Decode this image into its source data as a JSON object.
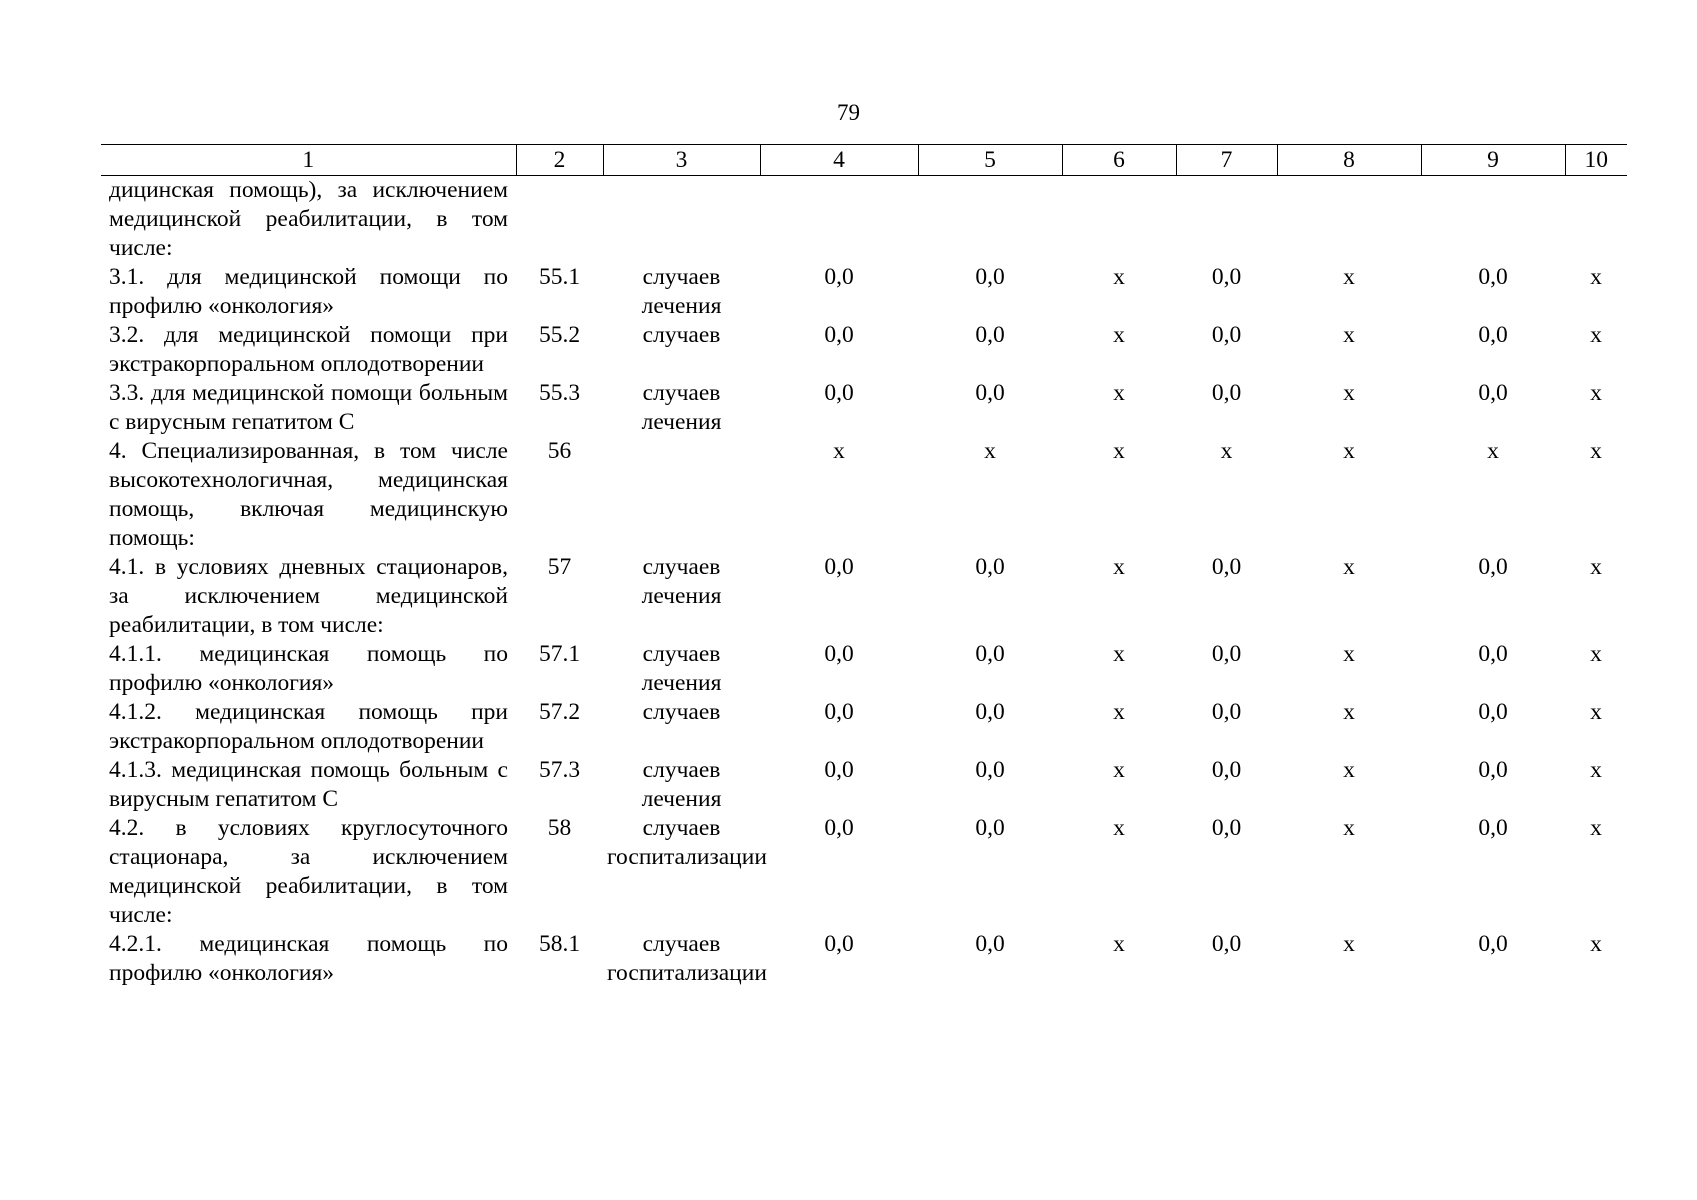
{
  "page_number": "79",
  "table": {
    "headers": [
      "1",
      "2",
      "3",
      "4",
      "5",
      "6",
      "7",
      "8",
      "9",
      "10"
    ],
    "rows": [
      {
        "name": "дицинская помощь), за исключением медицинской реабилитации, в том числе:",
        "code": "",
        "unit": "",
        "values": [
          "",
          "",
          "",
          "",
          "",
          "",
          ""
        ]
      },
      {
        "name": "3.1. для медицинской помощи по профилю «онкология»",
        "code": "55.1",
        "unit": "случаев лечения",
        "values": [
          "0,0",
          "0,0",
          "х",
          "0,0",
          "х",
          "0,0",
          "х"
        ]
      },
      {
        "name": "3.2. для медицинской помощи при экстракорпоральном оплодотворении",
        "code": "55.2",
        "unit": "случаев",
        "values": [
          "0,0",
          "0,0",
          "х",
          "0,0",
          "х",
          "0,0",
          "х"
        ]
      },
      {
        "name": "3.3. для медицинской помощи больным с вирусным гепатитом С",
        "code": "55.3",
        "unit": "случаев лечения",
        "values": [
          "0,0",
          "0,0",
          "х",
          "0,0",
          "х",
          "0,0",
          "х"
        ]
      },
      {
        "name": "4. Специализированная, в том числе высокотехнологичная, медицинская помощь, включая медицинскую помощь:",
        "code": "56",
        "unit": "",
        "values": [
          "х",
          "х",
          "х",
          "х",
          "х",
          "х",
          "х"
        ]
      },
      {
        "name": "4.1. в условиях дневных стационаров, за исключением медицинской реабилитации, в том числе:",
        "code": "57",
        "unit": "случаев лечения",
        "values": [
          "0,0",
          "0,0",
          "х",
          "0,0",
          "х",
          "0,0",
          "х"
        ]
      },
      {
        "name": "4.1.1. медицинская помощь по профилю «онкология»",
        "code": "57.1",
        "unit": "случаев лечения",
        "values": [
          "0,0",
          "0,0",
          "х",
          "0,0",
          "х",
          "0,0",
          "х"
        ]
      },
      {
        "name": "4.1.2. медицинская помощь при экстракорпоральном оплодотворении",
        "code": "57.2",
        "unit": "случаев",
        "values": [
          "0,0",
          "0,0",
          "х",
          "0,0",
          "х",
          "0,0",
          "х"
        ]
      },
      {
        "name": "4.1.3. медицинская помощь больным с вирусным гепатитом С",
        "code": "57.3",
        "unit": "случаев лечения",
        "values": [
          "0,0",
          "0,0",
          "х",
          "0,0",
          "х",
          "0,0",
          "х"
        ]
      },
      {
        "name": "4.2. в условиях круглосуточного стационара, за исключением медицинской реабилитации, в том числе:",
        "code": "58",
        "unit": "случаев госпитализации",
        "values": [
          "0,0",
          "0,0",
          "х",
          "0,0",
          "х",
          "0,0",
          "х"
        ]
      },
      {
        "name": "4.2.1. медицинская помощь по профилю «онкология»",
        "code": "58.1",
        "unit": "случаев госпитализации",
        "values": [
          "0,0",
          "0,0",
          "х",
          "0,0",
          "х",
          "0,0",
          "х"
        ]
      }
    ]
  }
}
